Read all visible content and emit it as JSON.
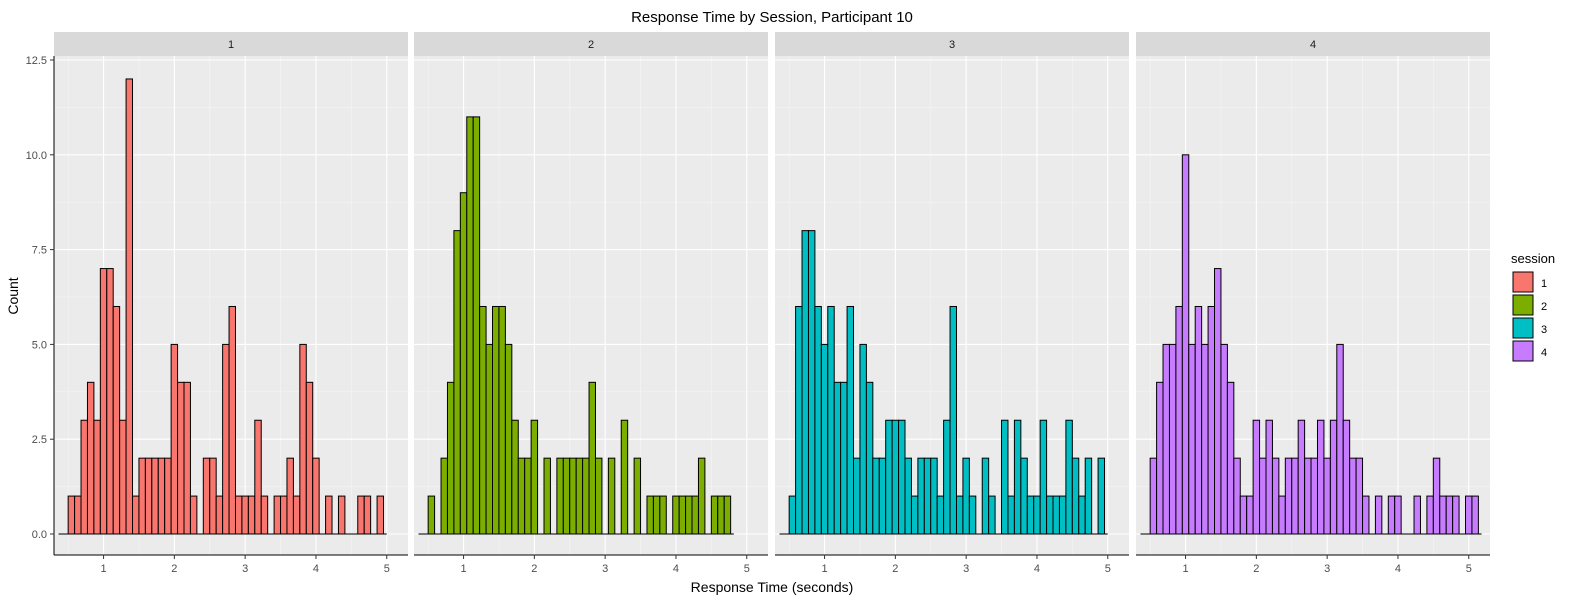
{
  "chart_data": {
    "type": "bar",
    "title": "Response Time by Session, Participant 10",
    "xlabel": "Response Time (seconds)",
    "ylabel": "Count",
    "xlim": [
      0.3,
      5.3
    ],
    "ylim": [
      0,
      12.5
    ],
    "x_ticks": [
      1,
      2,
      3,
      4,
      5
    ],
    "y_ticks": [
      0.0,
      2.5,
      5.0,
      7.5,
      10.0,
      12.5
    ],
    "y_tick_labels": [
      "0.0",
      "2.5",
      "5.0",
      "7.5",
      "10.0",
      "12.5"
    ],
    "bin_start": 0.5,
    "bin_width": 0.0909,
    "grid": true,
    "legend": {
      "title": "session",
      "position": "right"
    },
    "series": [
      {
        "name": "1",
        "color": "#F8766D",
        "values": [
          1,
          1,
          3,
          4,
          3,
          7,
          7,
          6,
          3,
          12,
          1,
          2,
          2,
          2,
          2,
          2,
          5,
          4,
          4,
          1,
          0,
          2,
          2,
          1,
          5,
          6,
          1,
          1,
          1,
          3,
          1,
          0,
          1,
          1,
          2,
          1,
          5,
          4,
          2,
          0,
          1,
          0,
          1,
          0,
          0,
          1,
          1,
          0,
          1
        ]
      },
      {
        "name": "2",
        "color": "#7CAE00",
        "values": [
          1,
          0,
          2,
          4,
          8,
          9,
          11,
          11,
          6,
          5,
          6,
          6,
          5,
          3,
          2,
          2,
          3,
          0,
          2,
          0,
          2,
          2,
          2,
          2,
          2,
          4,
          2,
          0,
          2,
          0,
          3,
          0,
          2,
          0,
          1,
          1,
          1,
          0,
          1,
          1,
          1,
          1,
          2,
          0,
          1,
          1,
          1
        ]
      },
      {
        "name": "3",
        "color": "#00BFC4",
        "values": [
          1,
          6,
          8,
          8,
          6,
          5,
          6,
          4,
          4,
          6,
          2,
          5,
          4,
          2,
          2,
          3,
          3,
          3,
          2,
          1,
          2,
          2,
          2,
          1,
          3,
          6,
          1,
          2,
          1,
          0,
          2,
          1,
          0,
          3,
          1,
          3,
          2,
          1,
          1,
          3,
          1,
          1,
          1,
          3,
          2,
          1,
          2,
          0,
          2
        ]
      },
      {
        "name": "4",
        "color": "#C77CFF",
        "values": [
          2,
          4,
          5,
          5,
          6,
          10,
          5,
          6,
          5,
          6,
          7,
          5,
          4,
          2,
          1,
          1,
          3,
          2,
          3,
          2,
          1,
          2,
          2,
          3,
          2,
          2,
          3,
          2,
          3,
          5,
          3,
          2,
          2,
          1,
          0,
          1,
          0,
          1,
          1,
          0,
          0,
          1,
          0,
          1,
          2,
          1,
          1,
          1,
          0,
          1,
          1
        ]
      }
    ]
  }
}
